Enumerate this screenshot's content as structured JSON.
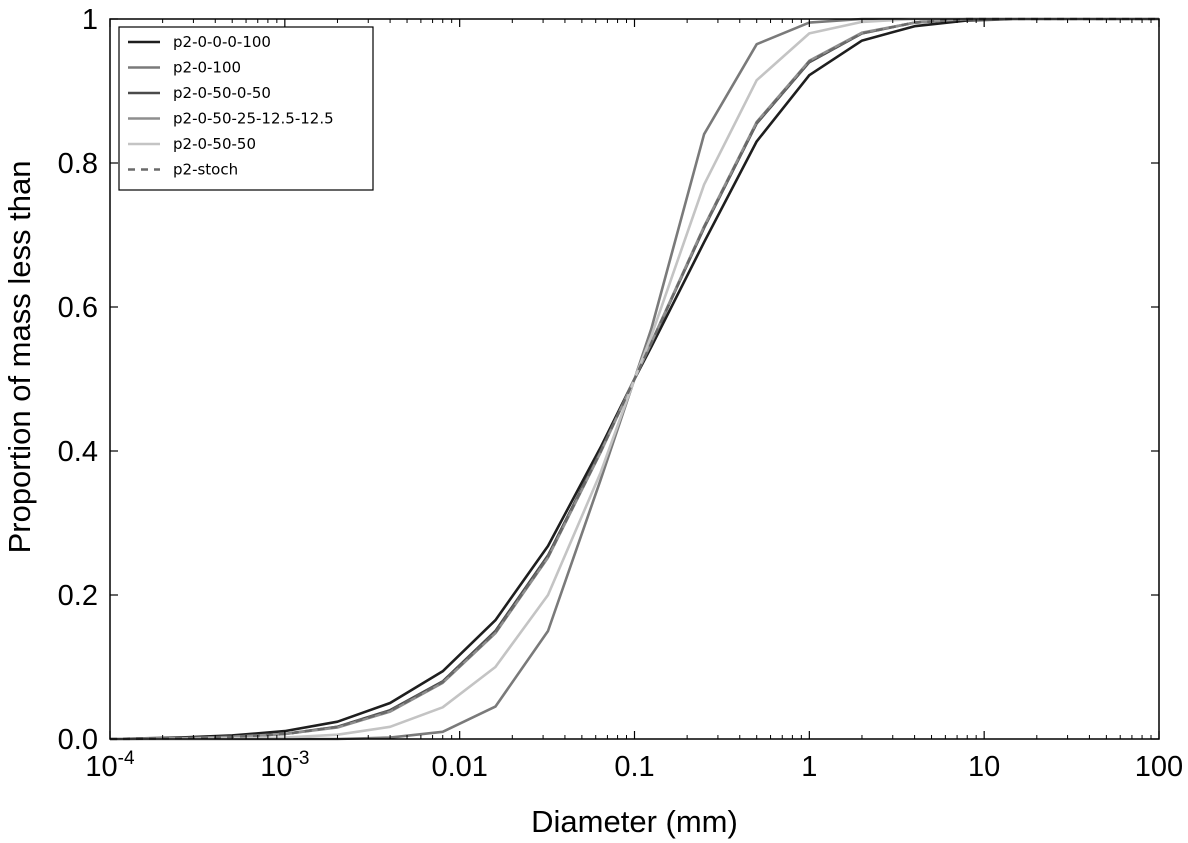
{
  "chart_data": {
    "type": "line",
    "xscale": "log",
    "xlim": [
      0.0001,
      100
    ],
    "ylim": [
      0,
      1
    ],
    "xlabel": "Diameter (mm)",
    "ylabel": "Proportion of mass less than",
    "grid": false,
    "legend_position": "top-left",
    "x_ticks": [
      {
        "value": 0.0001,
        "base": "10",
        "exp": "-4"
      },
      {
        "value": 0.001,
        "base": "10",
        "exp": "-3"
      },
      {
        "value": 0.01,
        "label": "0.01"
      },
      {
        "value": 0.1,
        "label": "0.1"
      },
      {
        "value": 1,
        "label": "1"
      },
      {
        "value": 10,
        "label": "10"
      },
      {
        "value": 100,
        "label": "100"
      }
    ],
    "y_ticks": [
      {
        "value": 0,
        "label": "0.0"
      },
      {
        "value": 0.2,
        "label": "0.2"
      },
      {
        "value": 0.4,
        "label": "0.4"
      },
      {
        "value": 0.6,
        "label": "0.6"
      },
      {
        "value": 0.8,
        "label": "0.8"
      },
      {
        "value": 1,
        "label": "1"
      }
    ],
    "x": [
      0.0001,
      0.00025,
      0.0005,
      0.001,
      0.002,
      0.004,
      0.008,
      0.016,
      0.032,
      0.064,
      0.1,
      0.125,
      0.25,
      0.5,
      1,
      2,
      4,
      8,
      16,
      32,
      64,
      100
    ],
    "series": [
      {
        "name": "p2-0-0-0-100",
        "color": "#1e1e1e",
        "dash": false,
        "values": [
          0.0,
          0.002,
          0.005,
          0.011,
          0.024,
          0.05,
          0.094,
          0.165,
          0.268,
          0.405,
          0.5,
          0.545,
          0.69,
          0.83,
          0.922,
          0.97,
          0.99,
          0.998,
          1.0,
          1.0,
          1.0,
          1.0
        ]
      },
      {
        "name": "p2-0-100",
        "color": "#7a7a7a",
        "dash": false,
        "values": [
          0.0,
          0.0,
          0.0,
          0.0,
          0.0,
          0.002,
          0.01,
          0.045,
          0.15,
          0.36,
          0.5,
          0.57,
          0.84,
          0.965,
          0.995,
          1.0,
          1.0,
          1.0,
          1.0,
          1.0,
          1.0,
          1.0
        ]
      },
      {
        "name": "p2-0-50-0-50",
        "color": "#4a4a4a",
        "dash": false,
        "values": [
          0.0,
          0.001,
          0.003,
          0.007,
          0.017,
          0.04,
          0.08,
          0.15,
          0.255,
          0.4,
          0.5,
          0.55,
          0.71,
          0.855,
          0.94,
          0.98,
          0.995,
          1.0,
          1.0,
          1.0,
          1.0,
          1.0
        ]
      },
      {
        "name": "p2-0-50-25-12.5-12.5",
        "color": "#8e8e8e",
        "dash": false,
        "values": [
          0.0,
          0.001,
          0.003,
          0.007,
          0.016,
          0.038,
          0.078,
          0.147,
          0.252,
          0.398,
          0.5,
          0.551,
          0.712,
          0.857,
          0.942,
          0.981,
          0.995,
          1.0,
          1.0,
          1.0,
          1.0,
          1.0
        ]
      },
      {
        "name": "p2-0-50-50",
        "color": "#c4c4c4",
        "dash": false,
        "values": [
          0.0,
          0.0,
          0.001,
          0.002,
          0.006,
          0.017,
          0.044,
          0.1,
          0.2,
          0.37,
          0.5,
          0.56,
          0.77,
          0.915,
          0.98,
          0.996,
          1.0,
          1.0,
          1.0,
          1.0,
          1.0,
          1.0
        ]
      },
      {
        "name": "p2-stoch",
        "color": "#6a6a6a",
        "dash": true,
        "values": [
          0.0,
          0.001,
          0.003,
          0.007,
          0.017,
          0.039,
          0.079,
          0.148,
          0.253,
          0.399,
          0.5,
          0.55,
          0.711,
          0.856,
          0.941,
          0.98,
          0.995,
          1.0,
          1.0,
          1.0,
          1.0,
          1.0
        ]
      }
    ]
  }
}
